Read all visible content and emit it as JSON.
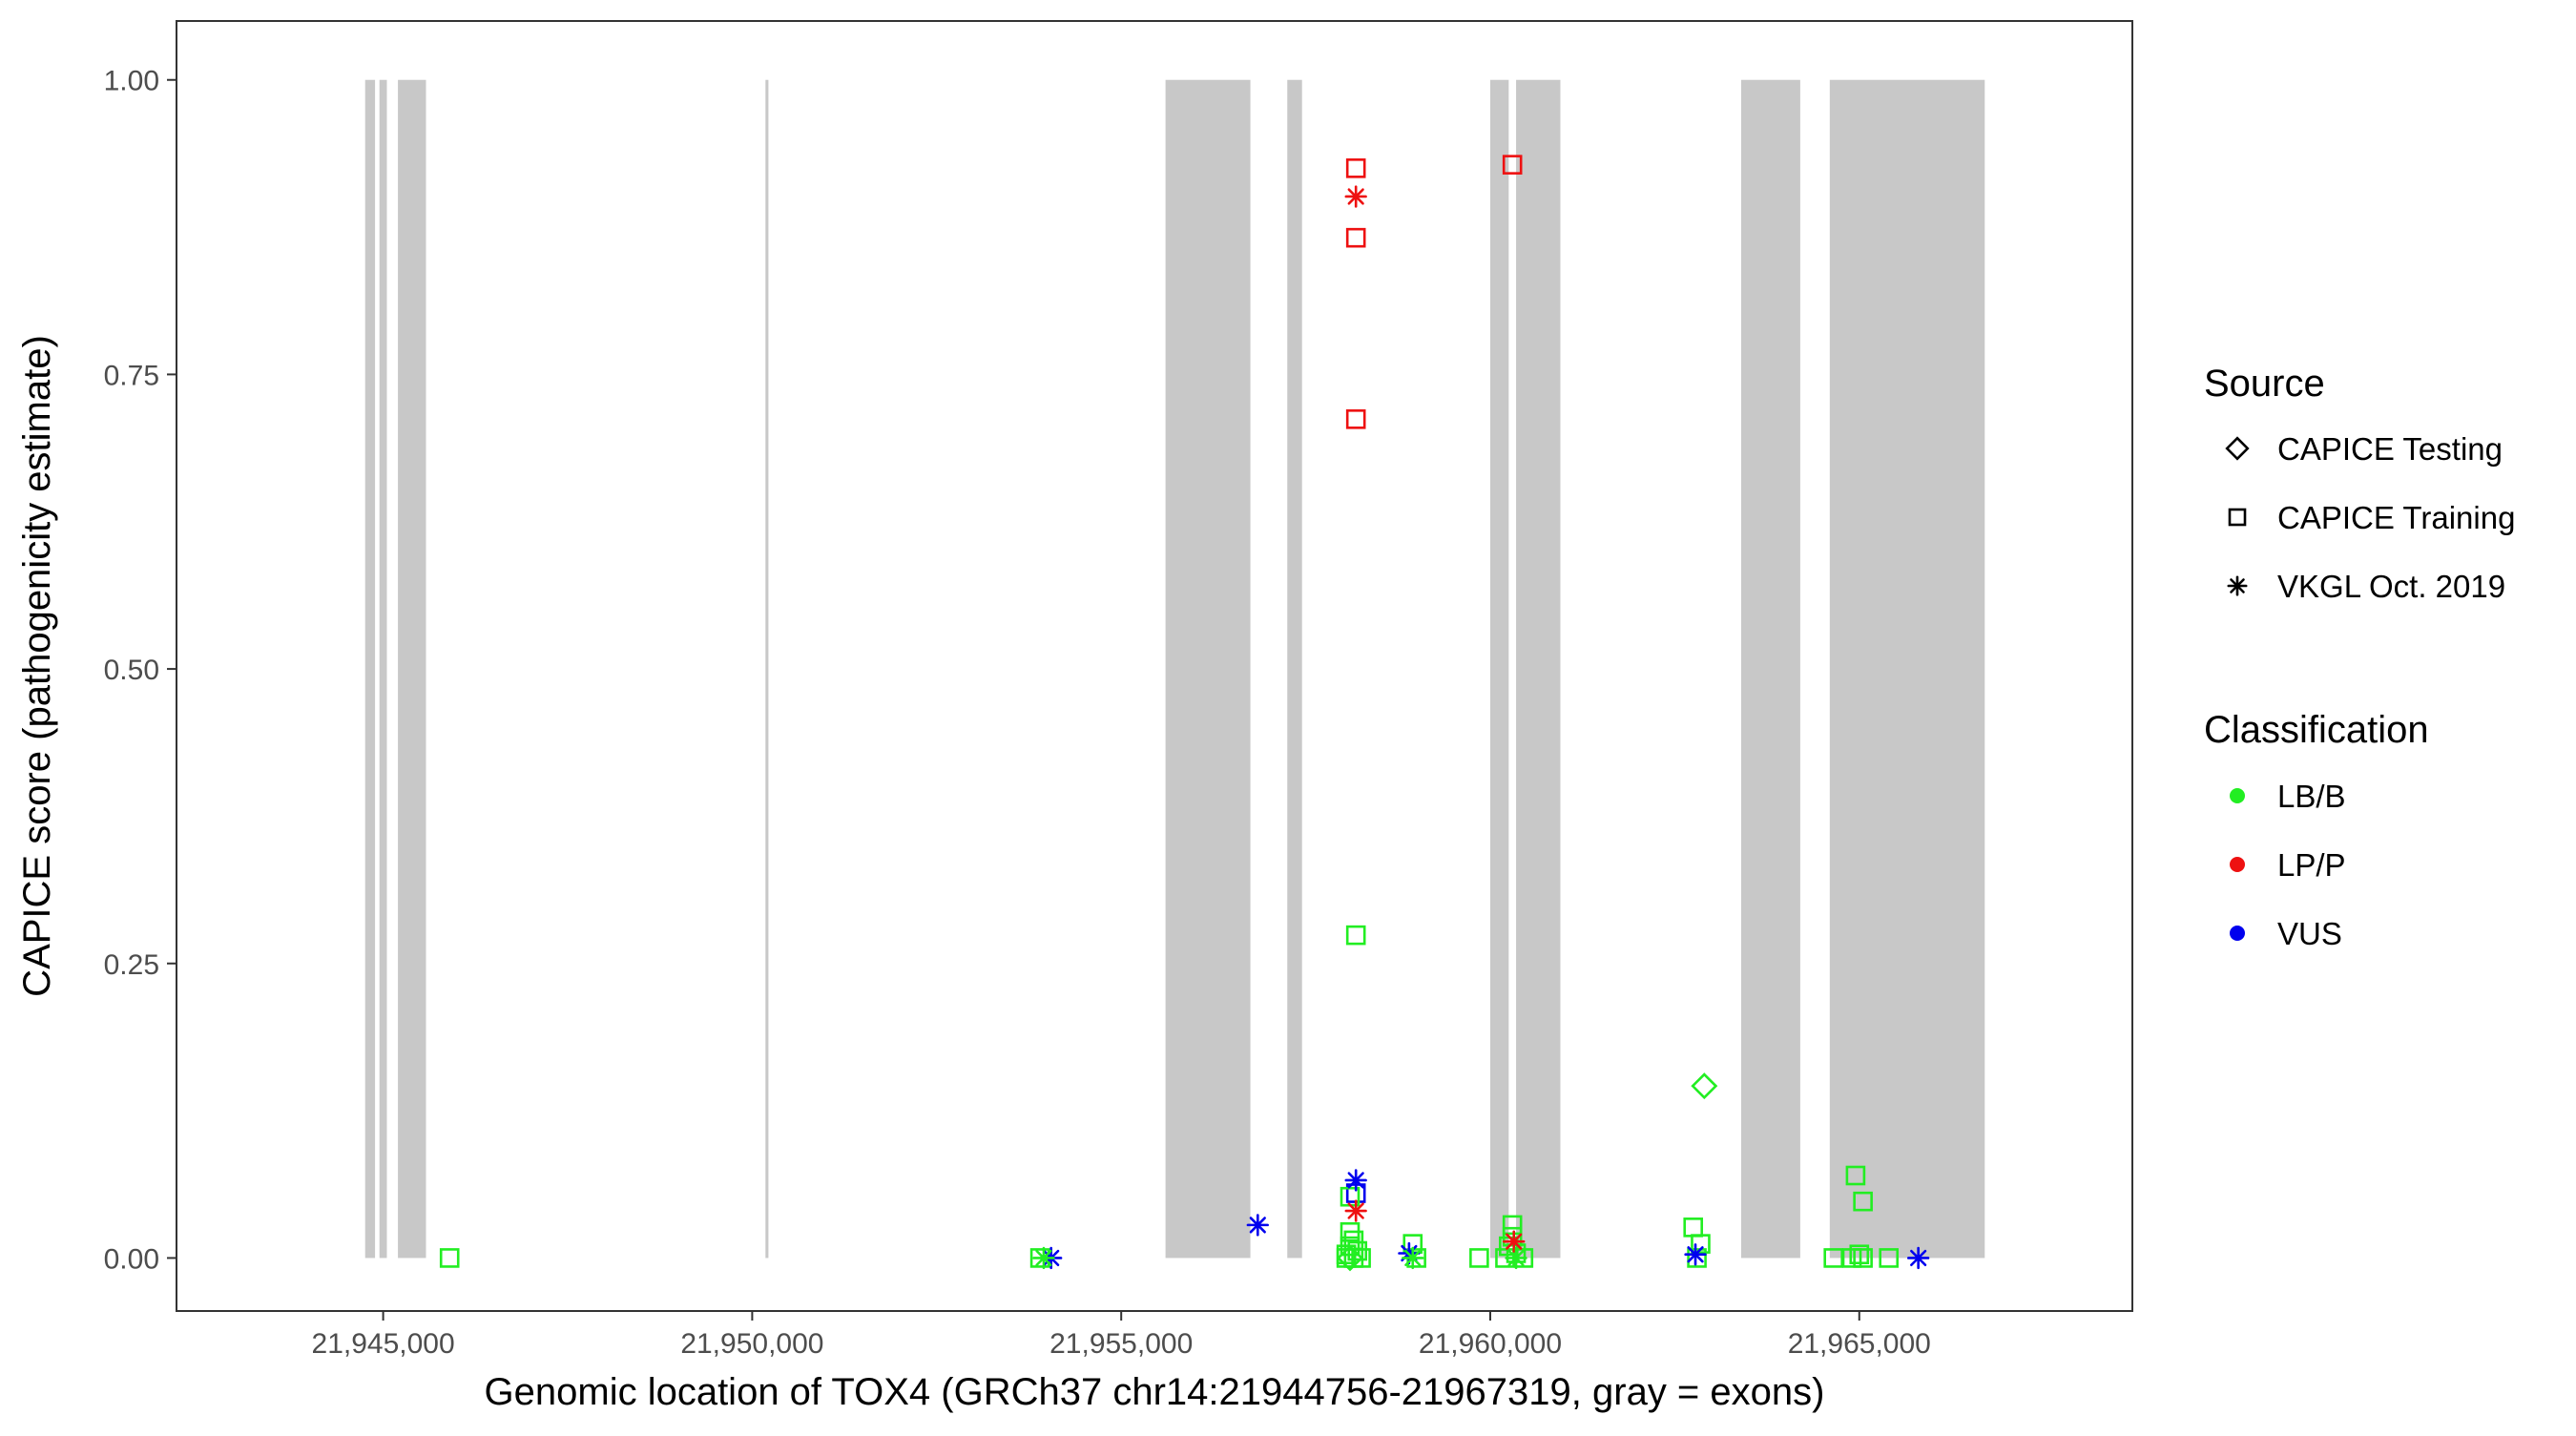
{
  "chart_data": {
    "type": "scatter",
    "title": "",
    "xlabel": "Genomic location of TOX4 (GRCh37 chr14:21944756-21967319, gray = exons)",
    "ylabel": "CAPICE score (pathogenicity estimate)",
    "xlim": [
      21942200,
      21968700
    ],
    "ylim": [
      -0.045,
      1.05
    ],
    "x_ticks": [
      21945000,
      21950000,
      21955000,
      21960000,
      21965000
    ],
    "x_tick_labels": [
      "21,945,000",
      "21,950,000",
      "21,955,000",
      "21,960,000",
      "21,965,000"
    ],
    "y_ticks": [
      0,
      0.25,
      0.5,
      0.75,
      1.0
    ],
    "y_tick_labels": [
      "0.00",
      "0.25",
      "0.50",
      "0.75",
      "1.00"
    ],
    "grid": false,
    "legend_position": "right",
    "exons": [
      [
        21944756,
        21944890
      ],
      [
        21944950,
        21945050
      ],
      [
        21945200,
        21945580
      ],
      [
        21950180,
        21950220
      ],
      [
        21955600,
        21956750
      ],
      [
        21957250,
        21957450
      ],
      [
        21960000,
        21960250
      ],
      [
        21960350,
        21960950
      ],
      [
        21963400,
        21964200
      ],
      [
        21964600,
        21966700
      ]
    ],
    "exon_color": "#c8c8c8",
    "legend": {
      "source": {
        "title": "Source",
        "items": [
          {
            "label": "CAPICE Testing",
            "shape": "diamond"
          },
          {
            "label": "CAPICE Training",
            "shape": "square"
          },
          {
            "label": "VKGL Oct. 2019",
            "shape": "asterisk"
          }
        ]
      },
      "classification": {
        "title": "Classification",
        "items": [
          {
            "label": "LB/B",
            "color": "#22ee22"
          },
          {
            "label": "LP/P",
            "color": "#ee1111"
          },
          {
            "label": "VUS",
            "color": "#0000ee"
          }
        ]
      }
    },
    "series": [
      {
        "source": "CAPICE Training",
        "shape": "square",
        "points": [
          {
            "x": 21958180,
            "y": 0.925,
            "class": "LP/P"
          },
          {
            "x": 21958180,
            "y": 0.866,
            "class": "LP/P"
          },
          {
            "x": 21958180,
            "y": 0.712,
            "class": "LP/P"
          },
          {
            "x": 21960300,
            "y": 0.928,
            "class": "LP/P"
          },
          {
            "x": 21958180,
            "y": 0.055,
            "class": "VUS"
          },
          {
            "x": 21945900,
            "y": 0.0,
            "class": "LB/B"
          },
          {
            "x": 21958180,
            "y": 0.274,
            "class": "LB/B"
          },
          {
            "x": 21958100,
            "y": 0.052,
            "class": "LB/B"
          },
          {
            "x": 21958100,
            "y": 0.022,
            "class": "LB/B"
          },
          {
            "x": 21958150,
            "y": 0.015,
            "class": "LB/B"
          },
          {
            "x": 21958100,
            "y": 0.01,
            "class": "LB/B"
          },
          {
            "x": 21958200,
            "y": 0.006,
            "class": "LB/B"
          },
          {
            "x": 21958050,
            "y": 0.003,
            "class": "LB/B"
          },
          {
            "x": 21958150,
            "y": 0.0,
            "class": "LB/B"
          },
          {
            "x": 21958250,
            "y": 0.0,
            "class": "LB/B"
          },
          {
            "x": 21958050,
            "y": 0.0,
            "class": "LB/B"
          },
          {
            "x": 21958950,
            "y": 0.012,
            "class": "LB/B"
          },
          {
            "x": 21959000,
            "y": 0.0,
            "class": "LB/B"
          },
          {
            "x": 21959850,
            "y": 0.0,
            "class": "LB/B"
          },
          {
            "x": 21960300,
            "y": 0.028,
            "class": "LB/B"
          },
          {
            "x": 21960300,
            "y": 0.018,
            "class": "LB/B"
          },
          {
            "x": 21960250,
            "y": 0.01,
            "class": "LB/B"
          },
          {
            "x": 21960350,
            "y": 0.004,
            "class": "LB/B"
          },
          {
            "x": 21960450,
            "y": 0.0,
            "class": "LB/B"
          },
          {
            "x": 21960200,
            "y": 0.0,
            "class": "LB/B"
          },
          {
            "x": 21962750,
            "y": 0.026,
            "class": "LB/B"
          },
          {
            "x": 21962850,
            "y": 0.012,
            "class": "LB/B"
          },
          {
            "x": 21962800,
            "y": 0.0,
            "class": "LB/B"
          },
          {
            "x": 21964950,
            "y": 0.07,
            "class": "LB/B"
          },
          {
            "x": 21965050,
            "y": 0.048,
            "class": "LB/B"
          },
          {
            "x": 21964650,
            "y": 0.0,
            "class": "LB/B"
          },
          {
            "x": 21965000,
            "y": 0.003,
            "class": "LB/B"
          },
          {
            "x": 21964900,
            "y": 0.0,
            "class": "LB/B"
          },
          {
            "x": 21965050,
            "y": 0.0,
            "class": "LB/B"
          },
          {
            "x": 21965400,
            "y": 0.0,
            "class": "LB/B"
          },
          {
            "x": 21953900,
            "y": 0.0,
            "class": "LB/B"
          }
        ]
      },
      {
        "source": "CAPICE Testing",
        "shape": "diamond",
        "points": [
          {
            "x": 21962900,
            "y": 0.146,
            "class": "LB/B"
          },
          {
            "x": 21958100,
            "y": 0.0,
            "class": "LB/B"
          }
        ]
      },
      {
        "source": "VKGL Oct. 2019",
        "shape": "asterisk",
        "points": [
          {
            "x": 21958180,
            "y": 0.901,
            "class": "LP/P"
          },
          {
            "x": 21958180,
            "y": 0.04,
            "class": "LP/P"
          },
          {
            "x": 21960320,
            "y": 0.014,
            "class": "LP/P"
          },
          {
            "x": 21958180,
            "y": 0.066,
            "class": "VUS"
          },
          {
            "x": 21956850,
            "y": 0.028,
            "class": "VUS"
          },
          {
            "x": 21954050,
            "y": 0.0,
            "class": "VUS"
          },
          {
            "x": 21958900,
            "y": 0.004,
            "class": "VUS"
          },
          {
            "x": 21962780,
            "y": 0.003,
            "class": "VUS"
          },
          {
            "x": 21965800,
            "y": 0.0,
            "class": "VUS"
          },
          {
            "x": 21953950,
            "y": 0.0,
            "class": "LB/B"
          },
          {
            "x": 21958950,
            "y": 0.0,
            "class": "LB/B"
          },
          {
            "x": 21960350,
            "y": 0.0,
            "class": "LB/B"
          }
        ]
      }
    ]
  }
}
